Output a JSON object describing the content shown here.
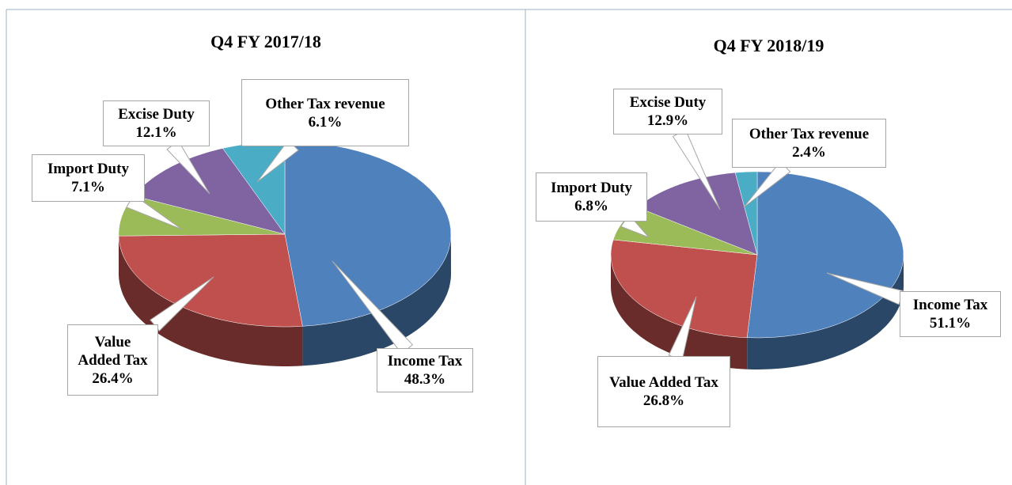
{
  "chart_data": [
    {
      "type": "pie3d",
      "title": "Q4 FY 2017/18",
      "categories": [
        "Income Tax",
        "Value Added Tax",
        "Import Duty",
        "Excise Duty",
        "Other Tax revenue"
      ],
      "values": [
        48.3,
        26.4,
        7.1,
        12.1,
        6.1
      ],
      "value_labels": [
        "48.3%",
        "26.4%",
        "7.1%",
        "12.1%",
        "6.1%"
      ],
      "colors": [
        "#4f81bd",
        "#c0504d",
        "#9bbb59",
        "#8064a2",
        "#4bacc6"
      ]
    },
    {
      "type": "pie3d",
      "title": "Q4 FY 2018/19",
      "categories": [
        "Income Tax",
        "Value Added Tax",
        "Import Duty",
        "Excise Duty",
        "Other Tax revenue"
      ],
      "values": [
        51.1,
        26.8,
        6.8,
        12.9,
        2.4
      ],
      "value_labels": [
        "51.1%",
        "26.8%",
        "6.8%",
        "12.9%",
        "2.4%"
      ],
      "colors": [
        "#4f81bd",
        "#c0504d",
        "#9bbb59",
        "#8064a2",
        "#4bacc6"
      ]
    }
  ]
}
